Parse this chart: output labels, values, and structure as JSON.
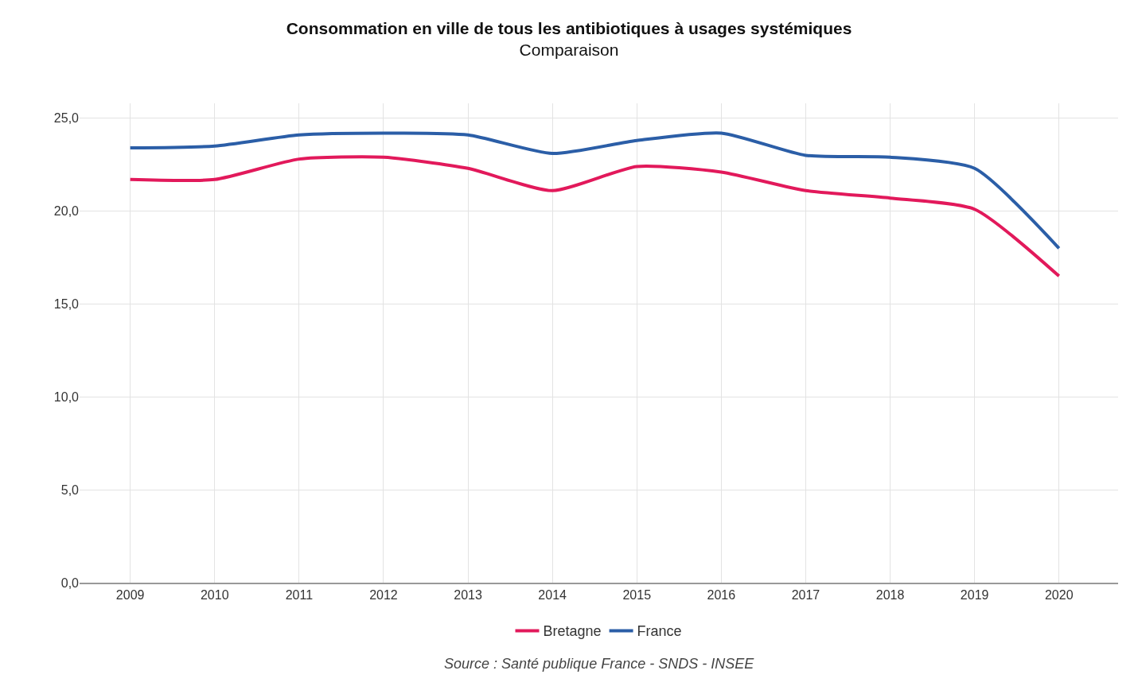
{
  "chart_data": {
    "type": "line",
    "title": "Consommation en ville de tous les antibiotiques à usages systémiques",
    "subtitle": "Comparaison",
    "categories": [
      "2009",
      "2010",
      "2011",
      "2012",
      "2013",
      "2014",
      "2015",
      "2016",
      "2017",
      "2018",
      "2019",
      "2020"
    ],
    "series": [
      {
        "name": "Bretagne",
        "color": "#e2195b",
        "values": [
          21.7,
          21.7,
          22.8,
          22.9,
          22.3,
          21.1,
          22.4,
          22.1,
          21.1,
          20.7,
          20.1,
          16.5
        ]
      },
      {
        "name": "France",
        "color": "#2b5ea7",
        "values": [
          23.4,
          23.5,
          24.1,
          24.2,
          24.1,
          23.1,
          23.8,
          24.2,
          23.0,
          22.9,
          22.3,
          18.0
        ]
      }
    ],
    "ylim": [
      0,
      25.8
    ],
    "yticks": [
      {
        "value": 0,
        "label": "0,0"
      },
      {
        "value": 5,
        "label": "5,0"
      },
      {
        "value": 10,
        "label": "10,0"
      },
      {
        "value": 15,
        "label": "15,0"
      },
      {
        "value": 20,
        "label": "20,0"
      },
      {
        "value": 25,
        "label": "25,0"
      }
    ],
    "grid": true,
    "legend": "bottom",
    "marker": "none",
    "line_style": "solid",
    "annotations": [
      "Source : Santé publique France - SNDS - INSEE"
    ]
  }
}
